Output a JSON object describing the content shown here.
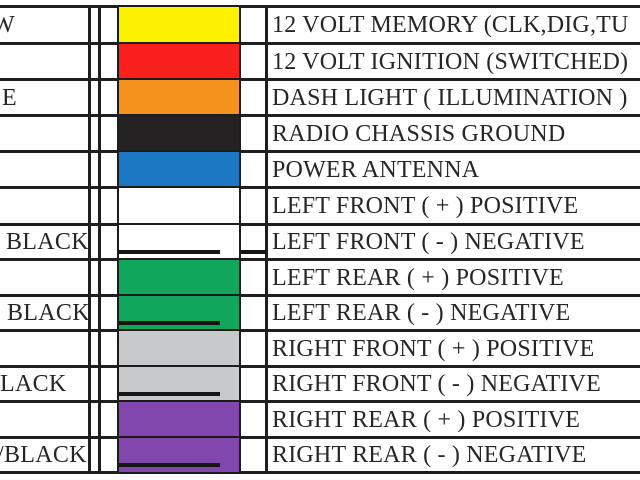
{
  "table": {
    "description_of_visible_content": "wire color code table",
    "rows": [
      {
        "wire_label_fragment": "W",
        "swatch_color": "#FFF200",
        "stripe": false,
        "function": "12 VOLT MEMORY (CLK,DIG,TU"
      },
      {
        "wire_label_fragment": "",
        "swatch_color": "#FA201E",
        "stripe": false,
        "function": "12 VOLT IGNITION (SWITCHED)"
      },
      {
        "wire_label_fragment": "E",
        "swatch_color": "#F6921E",
        "stripe": false,
        "function": "DASH LIGHT ( ILLUMINATION )"
      },
      {
        "wire_label_fragment": "",
        "swatch_color": "#242122",
        "stripe": false,
        "function": "RADIO CHASSIS GROUND"
      },
      {
        "wire_label_fragment": "",
        "swatch_color": "#1D78C4",
        "stripe": false,
        "function": "POWER ANTENNA"
      },
      {
        "wire_label_fragment": "",
        "swatch_color": "#FFFFFF",
        "stripe": false,
        "function": "LEFT FRONT ( + ) POSITIVE"
      },
      {
        "wire_label_fragment": "BLACK",
        "swatch_color": "#FFFFFF",
        "stripe": true,
        "function": "LEFT FRONT ( - ) NEGATIVE",
        "extra_mark": true
      },
      {
        "wire_label_fragment": "",
        "swatch_color": "#10A65C",
        "stripe": false,
        "function": "LEFT REAR ( + ) POSITIVE"
      },
      {
        "wire_label_fragment": "BLACK",
        "swatch_color": "#10A65C",
        "stripe": true,
        "function": "LEFT REAR ( - ) NEGATIVE"
      },
      {
        "wire_label_fragment": "",
        "swatch_color": "#C8C9CB",
        "stripe": false,
        "function": "RIGHT FRONT ( + ) POSITIVE"
      },
      {
        "wire_label_fragment": "LACK",
        "swatch_color": "#C8C9CB",
        "stripe": true,
        "function": "RIGHT FRONT ( - ) NEGATIVE"
      },
      {
        "wire_label_fragment": "",
        "swatch_color": "#8147AD",
        "stripe": false,
        "function": "RIGHT REAR ( + ) POSITIVE"
      },
      {
        "wire_label_fragment": "/BLACK",
        "swatch_color": "#8147AD",
        "stripe": true,
        "function": "RIGHT REAR ( - ) NEGATIVE"
      }
    ]
  },
  "colors": {
    "grid": "#1F1F1F",
    "text": "#262626",
    "stripe": "#151515",
    "background": "#FFFFFF"
  }
}
